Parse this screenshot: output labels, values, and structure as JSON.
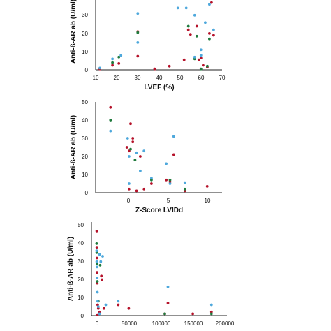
{
  "chart_data": [
    {
      "type": "scatter",
      "xlabel": "LVEF (%)",
      "ylabel": "Anti-ß-AR ab (U/ml)",
      "xlim": [
        10,
        70
      ],
      "ylim": [
        0,
        38
      ],
      "x_ticks": [
        "10",
        "20",
        "30",
        "40",
        "50",
        "60",
        "70"
      ],
      "y_ticks": [
        "0",
        "10",
        "20",
        "30"
      ],
      "grid": false,
      "series": [
        {
          "color": "#b5122a",
          "points": [
            [
              12,
              0.5
            ],
            [
              18,
              2.5
            ],
            [
              21,
              3.5
            ],
            [
              30,
              21
            ],
            [
              30,
              7.5
            ],
            [
              38,
              0.5
            ],
            [
              45,
              2
            ],
            [
              52,
              5.5
            ],
            [
              54,
              22
            ],
            [
              55,
              19.5
            ],
            [
              58,
              24
            ],
            [
              59,
              5.5
            ],
            [
              60,
              6.5
            ],
            [
              61,
              2.5
            ],
            [
              63,
              1.5
            ],
            [
              64,
              20
            ],
            [
              65,
              37
            ],
            [
              66,
              19
            ]
          ]
        },
        {
          "color": "#1f7a3d",
          "points": [
            [
              18,
              4
            ],
            [
              21,
              7
            ],
            [
              30,
              20.5
            ],
            [
              54,
              24
            ],
            [
              57,
              6
            ],
            [
              58,
              18.5
            ],
            [
              60,
              0.5
            ],
            [
              63,
              2
            ],
            [
              64,
              17
            ]
          ]
        },
        {
          "color": "#4ea8dc",
          "points": [
            [
              12,
              1
            ],
            [
              18,
              6
            ],
            [
              22,
              8
            ],
            [
              30,
              31
            ],
            [
              30,
              15
            ],
            [
              49,
              34
            ],
            [
              53,
              34
            ],
            [
              57,
              7
            ],
            [
              57,
              30
            ],
            [
              60,
              8
            ],
            [
              60,
              11
            ],
            [
              62,
              26
            ],
            [
              64,
              36
            ],
            [
              66,
              22
            ]
          ]
        }
      ]
    },
    {
      "type": "scatter",
      "xlabel": "Z-Score LVIDd",
      "ylabel": "Anti-ß-AR ab (U/ml)",
      "xlim": [
        -5,
        12
      ],
      "ylim": [
        0,
        50
      ],
      "x_ticks": [
        "0",
        "5",
        "10"
      ],
      "y_ticks": [
        "0",
        "10",
        "20",
        "30",
        "40",
        "50"
      ],
      "grid": false,
      "series": [
        {
          "color": "#b5122a",
          "points": [
            [
              -3,
              47
            ],
            [
              -0.3,
              38
            ],
            [
              0,
              30
            ],
            [
              -0.8,
              25
            ],
            [
              -0.5,
              23
            ],
            [
              0,
              28
            ],
            [
              1,
              20
            ],
            [
              1.5,
              2
            ],
            [
              0.5,
              1
            ],
            [
              2.5,
              5
            ],
            [
              4.5,
              7
            ],
            [
              5,
              6
            ],
            [
              5.5,
              21
            ],
            [
              7,
              1
            ],
            [
              10,
              3.5
            ],
            [
              -0.5,
              2
            ]
          ]
        },
        {
          "color": "#1f7a3d",
          "points": [
            [
              -3,
              40
            ],
            [
              -0.3,
              24
            ],
            [
              0.3,
              18
            ],
            [
              2.5,
              7
            ],
            [
              5,
              7
            ],
            [
              7,
              2
            ]
          ]
        },
        {
          "color": "#4ea8dc",
          "points": [
            [
              -3,
              34
            ],
            [
              -0.7,
              30
            ],
            [
              -0.5,
              20
            ],
            [
              1,
              12
            ],
            [
              0.5,
              22
            ],
            [
              1.5,
              23
            ],
            [
              2.5,
              8
            ],
            [
              4.5,
              16
            ],
            [
              5.5,
              31
            ],
            [
              5,
              5
            ],
            [
              7,
              5.5
            ],
            [
              -0.5,
              5
            ]
          ]
        }
      ]
    },
    {
      "type": "scatter",
      "xlabel": "",
      "ylabel": "Anti-ß-AR ab (U/ml)",
      "xlim": [
        -8000,
        210000
      ],
      "ylim": [
        0,
        52
      ],
      "x_ticks": [
        "0",
        "50000",
        "100000",
        "150000",
        "200000"
      ],
      "y_ticks": [
        "0",
        "10",
        "20",
        "30",
        "40",
        "50"
      ],
      "grid": false,
      "series": [
        {
          "color": "#b5122a",
          "points": [
            [
              500,
              47
            ],
            [
              600,
              38
            ],
            [
              800,
              32
            ],
            [
              1000,
              24
            ],
            [
              1200,
              18
            ],
            [
              2000,
              6
            ],
            [
              3000,
              4
            ],
            [
              5000,
              2
            ],
            [
              8000,
              22
            ],
            [
              9000,
              20
            ],
            [
              12000,
              4
            ],
            [
              35000,
              6
            ],
            [
              52000,
              4
            ],
            [
              110000,
              1
            ],
            [
              115000,
              7
            ],
            [
              155000,
              1
            ],
            [
              185000,
              2
            ],
            [
              1500,
              0.5
            ]
          ]
        },
        {
          "color": "#1f7a3d",
          "points": [
            [
              300,
              40
            ],
            [
              500,
              35
            ],
            [
              1000,
              29
            ],
            [
              1500,
              19
            ],
            [
              3000,
              8
            ],
            [
              6000,
              28
            ],
            [
              110000,
              1
            ],
            [
              185000,
              1
            ]
          ]
        },
        {
          "color": "#4ea8dc",
          "points": [
            [
              300,
              36
            ],
            [
              500,
              30
            ],
            [
              1000,
              27
            ],
            [
              1200,
              21
            ],
            [
              1500,
              13
            ],
            [
              2000,
              8
            ],
            [
              3000,
              5
            ],
            [
              5000,
              34
            ],
            [
              7000,
              30
            ],
            [
              10000,
              33
            ],
            [
              15000,
              6
            ],
            [
              35000,
              8
            ],
            [
              115000,
              16
            ],
            [
              185000,
              6
            ],
            [
              5000,
              1
            ]
          ]
        }
      ]
    }
  ]
}
